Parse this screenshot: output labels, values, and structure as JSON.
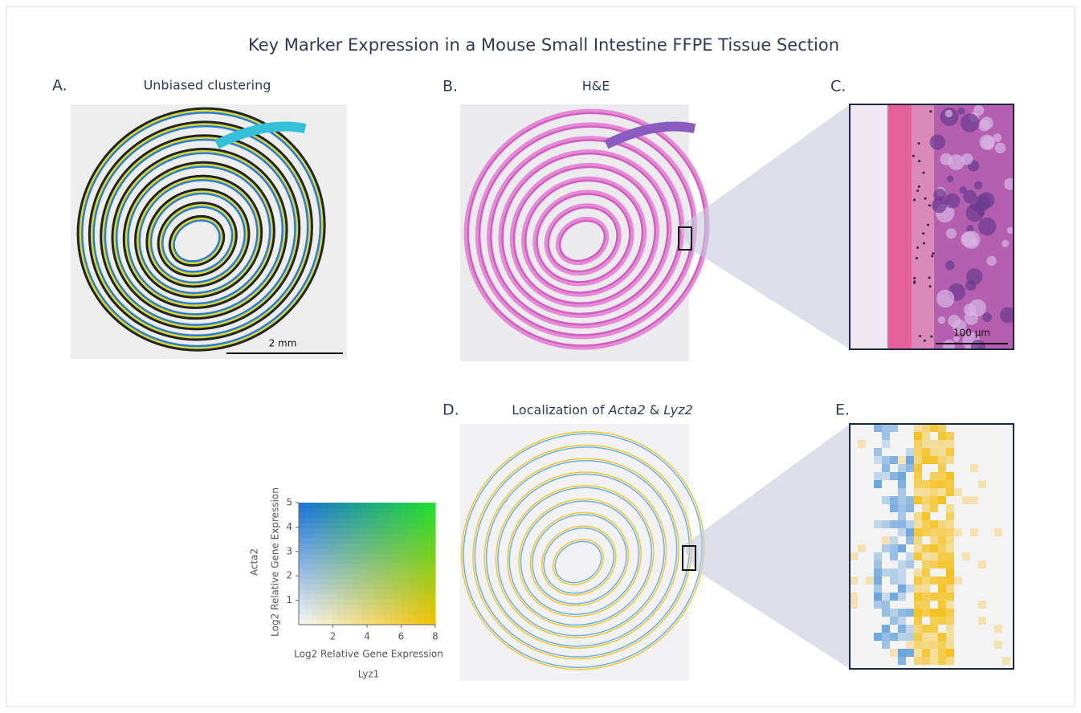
{
  "title": "Key Marker Expression in a Mouse Small Intestine FFPE Tissue Section",
  "panels": [
    {
      "label": "A.",
      "title": "Unbiased clustering",
      "scale_bar": "2 mm"
    },
    {
      "label": "B.",
      "title": "H&E"
    },
    {
      "label": "C.",
      "scale_bar": "100 µm"
    },
    {
      "label": "D.",
      "title_parts": [
        "Localization of ",
        "Acta2",
        " & ",
        "Lyz2"
      ]
    },
    {
      "label": "E."
    }
  ],
  "legend": {
    "xlim": [
      0,
      8
    ],
    "ylim": [
      0,
      5
    ],
    "xticks": [
      2,
      4,
      6,
      8
    ],
    "yticks": [
      1,
      2,
      3,
      4,
      5
    ],
    "y_label": [
      "Acta2",
      "Log2 Relative Gene Expression"
    ],
    "x_label": [
      "Log2 Relative Gene Expression",
      "Lyz1"
    ]
  }
}
